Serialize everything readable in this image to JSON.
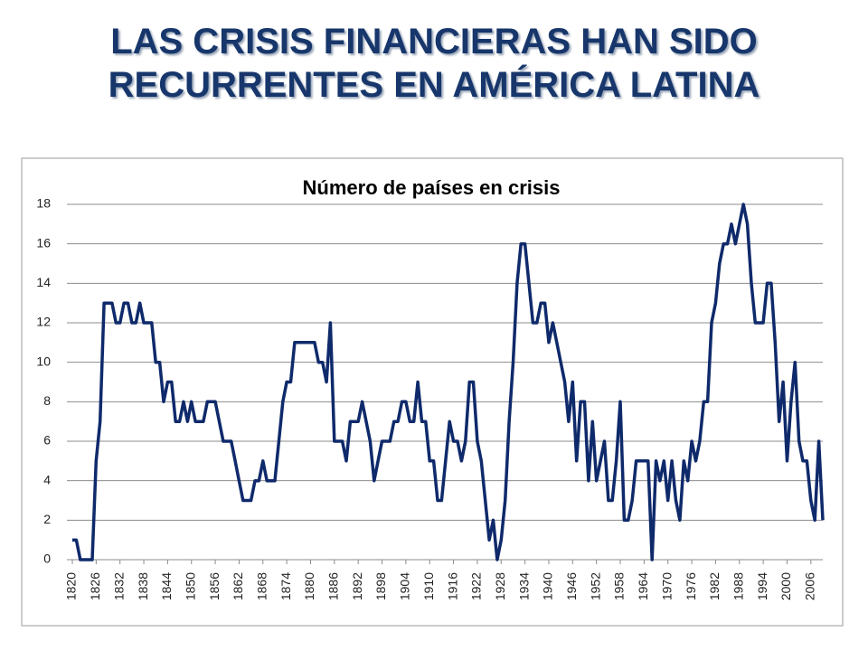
{
  "header": {
    "title": "LAS CRISIS FINANCIERAS HAN SIDO RECURRENTES EN AMÉRICA LATINA"
  },
  "chart_data": {
    "type": "line",
    "title": "Número de países en crisis",
    "x": [
      1820,
      1821,
      1822,
      1823,
      1824,
      1825,
      1826,
      1827,
      1828,
      1829,
      1830,
      1831,
      1832,
      1833,
      1834,
      1835,
      1836,
      1837,
      1838,
      1839,
      1840,
      1841,
      1842,
      1843,
      1844,
      1845,
      1846,
      1847,
      1848,
      1849,
      1850,
      1851,
      1852,
      1853,
      1854,
      1855,
      1856,
      1857,
      1858,
      1859,
      1860,
      1861,
      1862,
      1863,
      1864,
      1865,
      1866,
      1867,
      1868,
      1869,
      1870,
      1871,
      1872,
      1873,
      1874,
      1875,
      1876,
      1877,
      1878,
      1879,
      1880,
      1881,
      1882,
      1883,
      1884,
      1885,
      1886,
      1887,
      1888,
      1889,
      1890,
      1891,
      1892,
      1893,
      1894,
      1895,
      1896,
      1897,
      1898,
      1899,
      1900,
      1901,
      1902,
      1903,
      1904,
      1905,
      1906,
      1907,
      1908,
      1909,
      1910,
      1911,
      1912,
      1913,
      1914,
      1915,
      1916,
      1917,
      1918,
      1919,
      1920,
      1921,
      1922,
      1923,
      1924,
      1925,
      1926,
      1927,
      1928,
      1929,
      1930,
      1931,
      1932,
      1933,
      1934,
      1935,
      1936,
      1937,
      1938,
      1939,
      1940,
      1941,
      1942,
      1943,
      1944,
      1945,
      1946,
      1947,
      1948,
      1949,
      1950,
      1951,
      1952,
      1953,
      1954,
      1955,
      1956,
      1957,
      1958,
      1959,
      1960,
      1961,
      1962,
      1963,
      1964,
      1965,
      1966,
      1967,
      1968,
      1969,
      1970,
      1971,
      1972,
      1973,
      1974,
      1975,
      1976,
      1977,
      1978,
      1979,
      1980,
      1981,
      1982,
      1983,
      1984,
      1985,
      1986,
      1987,
      1988,
      1989,
      1990,
      1991,
      1992,
      1993,
      1994,
      1995,
      1996,
      1997,
      1998,
      1999,
      2000,
      2001,
      2002,
      2003,
      2004,
      2005,
      2006,
      2007,
      2008,
      2009
    ],
    "values": [
      1,
      1,
      0,
      0,
      0,
      0,
      5,
      7,
      13,
      13,
      13,
      12,
      12,
      13,
      13,
      12,
      12,
      13,
      12,
      12,
      12,
      10,
      10,
      8,
      9,
      9,
      7,
      7,
      8,
      7,
      8,
      7,
      7,
      7,
      8,
      8,
      8,
      7,
      6,
      6,
      6,
      5,
      4,
      3,
      3,
      3,
      4,
      4,
      5,
      4,
      4,
      4,
      6,
      8,
      9,
      9,
      11,
      11,
      11,
      11,
      11,
      11,
      10,
      10,
      9,
      12,
      6,
      6,
      6,
      5,
      7,
      7,
      7,
      8,
      7,
      6,
      4,
      5,
      6,
      6,
      6,
      7,
      7,
      8,
      8,
      7,
      7,
      9,
      7,
      7,
      5,
      5,
      3,
      3,
      5,
      7,
      6,
      6,
      5,
      6,
      9,
      9,
      6,
      5,
      3,
      1,
      2,
      0,
      1,
      3,
      7,
      10,
      14,
      16,
      16,
      14,
      12,
      12,
      13,
      13,
      11,
      12,
      11,
      10,
      9,
      7,
      9,
      5,
      8,
      8,
      4,
      7,
      4,
      5,
      6,
      3,
      3,
      5,
      8,
      2,
      2,
      3,
      5,
      5,
      5,
      5,
      0,
      5,
      4,
      5,
      3,
      5,
      3,
      2,
      5,
      4,
      6,
      5,
      6,
      8,
      8,
      12,
      13,
      15,
      16,
      16,
      17,
      16,
      17,
      18,
      17,
      14,
      12,
      12,
      12,
      14,
      14,
      11,
      7,
      9,
      5,
      8,
      10,
      6,
      5,
      5,
      3,
      2,
      6,
      2
    ],
    "color": "#0f2a6b",
    "xlim": [
      1820,
      2009
    ],
    "xticks": [
      1820,
      1826,
      1832,
      1838,
      1844,
      1850,
      1856,
      1862,
      1868,
      1874,
      1880,
      1886,
      1892,
      1898,
      1904,
      1910,
      1916,
      1922,
      1928,
      1934,
      1940,
      1946,
      1952,
      1958,
      1964,
      1970,
      1976,
      1982,
      1988,
      1994,
      2000,
      2006
    ],
    "ylim": [
      0,
      18
    ],
    "yticks": [
      0,
      2,
      4,
      6,
      8,
      10,
      12,
      14,
      16,
      18
    ],
    "grid": true
  }
}
